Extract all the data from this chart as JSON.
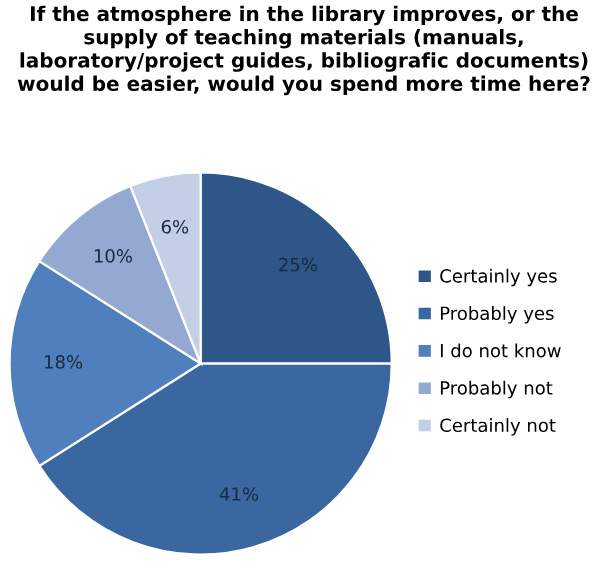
{
  "chart_data": {
    "type": "pie",
    "title": "If the atmosphere in the library improves, or the supply of teaching materials (manuals, laboratory/project guides, bibliografic documents) would be easier, would you spend more time here?",
    "categories": [
      "Certainly yes",
      "Probably yes",
      "I do not know",
      "Probably not",
      "Certainly not"
    ],
    "values": [
      25,
      41,
      18,
      10,
      6
    ],
    "colors": [
      "#2f5688",
      "#3b67a0",
      "#4f7fbd",
      "#93a9d1",
      "#c3cfe6"
    ],
    "value_labels": [
      "25%",
      "41%",
      "18%",
      "10%",
      "6%"
    ],
    "legend": "right"
  }
}
